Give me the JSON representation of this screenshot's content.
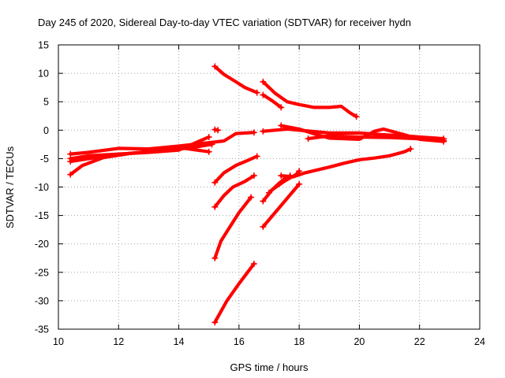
{
  "chart_data": {
    "type": "scatter",
    "title": "Day 245 of 2020, Sidereal Day-to-day VTEC variation (SDTVAR) for receiver hydn",
    "xlabel": "GPS time / hours",
    "ylabel": "SDTVAR / TECUs",
    "xlim": [
      10,
      24
    ],
    "ylim": [
      -35,
      15
    ],
    "xticks": [
      "10",
      "12",
      "14",
      "16",
      "18",
      "20",
      "22",
      "24"
    ],
    "yticks": [
      "15",
      "10",
      "5",
      "0",
      "-5",
      "-10",
      "-15",
      "-20",
      "-25",
      "-30",
      "-35"
    ],
    "grid": true,
    "marker_color": "#ff0000",
    "series": [
      {
        "name": "arc-1",
        "x": [
          10.4,
          11.0,
          12.0,
          13.0,
          14.0,
          15.0,
          15.5,
          15.9,
          16.5
        ],
        "y": [
          -4.2,
          -3.9,
          -3.2,
          -3.3,
          -2.8,
          -2.2,
          -1.9,
          -0.6,
          -0.4
        ]
      },
      {
        "name": "arc-2",
        "x": [
          10.4,
          11.0,
          12.0,
          13.0,
          14.0,
          15.0
        ],
        "y": [
          -5.0,
          -4.5,
          -4.2,
          -3.9,
          -3.5,
          -1.2
        ]
      },
      {
        "name": "arc-3",
        "x": [
          10.4,
          10.8,
          11.5,
          12.5,
          13.5,
          14.2,
          15.0
        ],
        "y": [
          -7.8,
          -6.2,
          -4.8,
          -4.0,
          -3.5,
          -3.2,
          -3.8
        ]
      },
      {
        "name": "arc-4",
        "x": [
          10.4,
          11.5,
          12.5,
          13.5,
          14.5,
          15.1
        ],
        "y": [
          -5.5,
          -4.6,
          -4.0,
          -3.6,
          -3.0,
          -2.5
        ]
      },
      {
        "name": "arc-5",
        "x": [
          15.2,
          15.5,
          15.9,
          16.2,
          16.6
        ],
        "y": [
          11.2,
          9.8,
          8.5,
          7.5,
          6.6
        ]
      },
      {
        "name": "arc-6",
        "x": [
          15.2,
          15.5,
          15.9,
          16.3,
          16.6
        ],
        "y": [
          -9.2,
          -7.5,
          -6.2,
          -5.3,
          -4.6
        ]
      },
      {
        "name": "arc-7",
        "x": [
          15.2,
          15.5,
          15.8,
          16.2,
          16.5
        ],
        "y": [
          -13.5,
          -11.5,
          -10.0,
          -9.0,
          -8.0
        ]
      },
      {
        "name": "arc-8",
        "x": [
          15.2,
          15.4,
          15.7,
          16.0,
          16.4
        ],
        "y": [
          -22.5,
          -19.5,
          -17.0,
          -14.5,
          -11.8
        ]
      },
      {
        "name": "arc-9",
        "x": [
          15.2,
          15.6,
          16.0,
          16.5
        ],
        "y": [
          -33.8,
          -30.0,
          -27.0,
          -23.5
        ]
      },
      {
        "name": "arc-10",
        "x": [
          15.2,
          15.3
        ],
        "y": [
          0.1,
          0.0
        ]
      },
      {
        "name": "arc-11",
        "x": [
          16.8,
          17.2,
          17.6,
          18.0,
          18.5,
          19.0,
          19.4,
          19.7,
          19.9
        ],
        "y": [
          8.5,
          6.5,
          5.0,
          4.5,
          4.0,
          4.0,
          4.2,
          3.0,
          2.4
        ]
      },
      {
        "name": "arc-12",
        "x": [
          16.8,
          17.1,
          17.4
        ],
        "y": [
          6.2,
          5.2,
          4.0
        ]
      },
      {
        "name": "arc-13",
        "x": [
          16.8,
          17.2,
          17.6,
          18.0,
          19.0,
          20.0,
          20.8,
          21.5,
          22.0,
          22.8
        ],
        "y": [
          -0.2,
          0.0,
          0.2,
          0.0,
          -0.5,
          -0.5,
          -0.8,
          -1.0,
          -1.2,
          -1.5
        ]
      },
      {
        "name": "arc-14",
        "x": [
          17.4,
          18.0,
          18.6,
          19.0,
          20.0,
          20.5,
          20.8,
          21.5,
          22.0,
          22.8
        ],
        "y": [
          0.8,
          0.2,
          -0.8,
          -1.4,
          -1.6,
          -0.2,
          0.2,
          -0.8,
          -1.6,
          -2.0
        ]
      },
      {
        "name": "arc-15",
        "x": [
          18.3,
          19.0,
          20.0,
          21.0,
          22.0,
          22.8
        ],
        "y": [
          -1.5,
          -1.0,
          -1.2,
          -1.3,
          -1.5,
          -1.8
        ]
      },
      {
        "name": "arc-16",
        "x": [
          16.8,
          17.2,
          17.6,
          18.0
        ],
        "y": [
          -17.0,
          -14.5,
          -12.0,
          -9.5
        ]
      },
      {
        "name": "arc-17",
        "x": [
          16.8,
          17.1,
          17.5,
          17.9,
          18.0
        ],
        "y": [
          -12.5,
          -10.5,
          -9.0,
          -7.8,
          -7.2
        ]
      },
      {
        "name": "arc-18",
        "x": [
          17.0,
          17.3,
          17.5,
          17.7
        ],
        "y": [
          -11.0,
          -9.5,
          -8.6,
          -8.0
        ]
      },
      {
        "name": "arc-19",
        "x": [
          17.4,
          17.8,
          18.2,
          18.6,
          19.0,
          19.5,
          20.0,
          20.5,
          21.0,
          21.5,
          21.7
        ],
        "y": [
          -8.0,
          -8.2,
          -7.5,
          -7.0,
          -6.5,
          -5.8,
          -5.2,
          -4.9,
          -4.5,
          -3.8,
          -3.3
        ]
      }
    ]
  }
}
